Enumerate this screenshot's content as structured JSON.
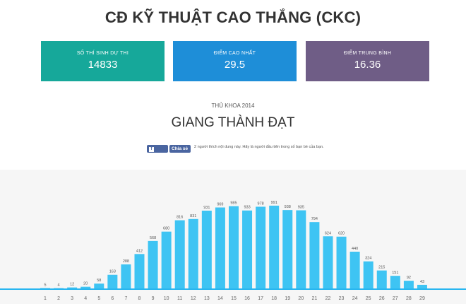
{
  "header": {
    "title": "CĐ KỸ THUẬT CAO THẮNG (CKC)"
  },
  "stats": [
    {
      "label": "SỐ THÍ SINH DỰ THI",
      "value": "14833",
      "color": "#16a89a"
    },
    {
      "label": "ĐIỂM CAO NHẤT",
      "value": "29.5",
      "color": "#1e8ed8"
    },
    {
      "label": "ĐIỂM TRUNG BÌNH",
      "value": "16.36",
      "color": "#6f5d86"
    }
  ],
  "top_student": {
    "label": "THỦ KHOA 2014",
    "name": "GIANG THÀNH ĐẠT"
  },
  "facebook": {
    "like_label": "Thích",
    "like_icon": "facebook-f-icon",
    "share_label": "Chia sẻ",
    "text": "2 người thích nội dung này. Hãy là người đầu tiên trong số bạn bè của bạn."
  },
  "chart_data": {
    "type": "bar",
    "categories": [
      "1",
      "2",
      "3",
      "4",
      "5",
      "6",
      "7",
      "8",
      "9",
      "10",
      "11",
      "12",
      "13",
      "14",
      "15",
      "16",
      "17",
      "18",
      "19",
      "20",
      "21",
      "22",
      "23",
      "24",
      "25",
      "26",
      "27",
      "28",
      "29"
    ],
    "values": [
      5,
      4,
      12,
      20,
      58,
      163,
      288,
      412,
      568,
      680,
      816,
      831,
      931,
      969,
      985,
      933,
      978,
      991,
      938,
      935,
      794,
      624,
      620,
      440,
      324,
      215,
      151,
      92,
      43
    ],
    "title": "",
    "xlabel": "",
    "ylabel": "",
    "ylim": [
      0,
      1100
    ],
    "grid": false,
    "bar_color": "#3ec4f3",
    "baseline_color": "#29b6f0"
  }
}
